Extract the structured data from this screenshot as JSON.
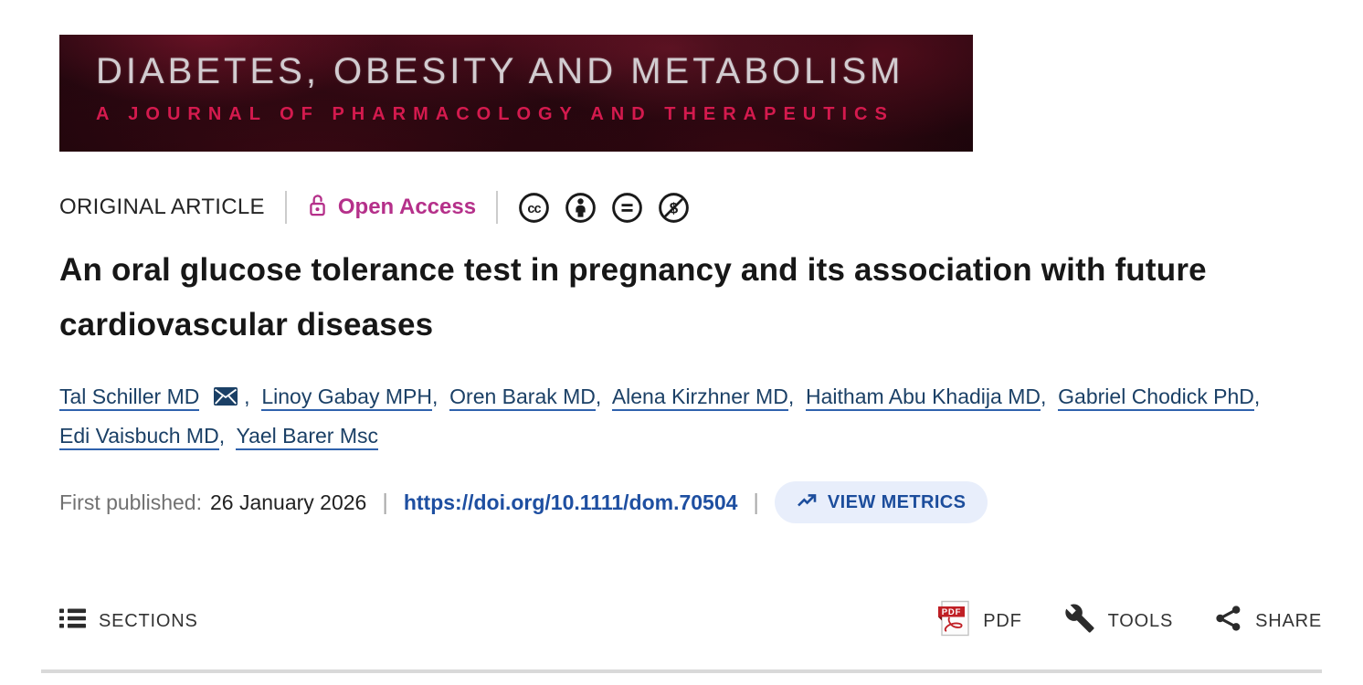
{
  "banner": {
    "title": "DIABETES, OBESITY AND METABOLISM",
    "subtitle": "A JOURNAL OF PHARMACOLOGY AND THERAPEUTICS"
  },
  "meta": {
    "category": "ORIGINAL ARTICLE",
    "open_access": "Open Access",
    "license": [
      "CC",
      "BY",
      "ND",
      "NC"
    ]
  },
  "article": {
    "title": "An oral glucose tolerance test in pregnancy and its association with future cardiovascular diseases"
  },
  "authors": [
    {
      "name": "Tal Schiller MD",
      "corresponding": true
    },
    {
      "name": "Linoy Gabay MPH"
    },
    {
      "name": "Oren Barak MD"
    },
    {
      "name": "Alena Kirzhner MD"
    },
    {
      "name": "Haitham Abu Khadija MD"
    },
    {
      "name": "Gabriel Chodick PhD"
    },
    {
      "name": "Edi Vaisbuch MD"
    },
    {
      "name": "Yael Barer Msc"
    }
  ],
  "publication": {
    "label": "First published:",
    "date": "26 January 2026",
    "doi": "https://doi.org/10.1111/dom.70504",
    "metrics": "VIEW METRICS"
  },
  "toolbar": {
    "sections": "SECTIONS",
    "pdf": "PDF",
    "tools": "TOOLS",
    "share": "SHARE"
  },
  "colors": {
    "open_access": "#b5308a",
    "author_link": "#1b4066",
    "doi_link": "#1e4fa1",
    "metrics_bg": "#e8eefb",
    "metrics_text": "#1c4d9c",
    "banner_subtitle": "#d41a4e"
  }
}
